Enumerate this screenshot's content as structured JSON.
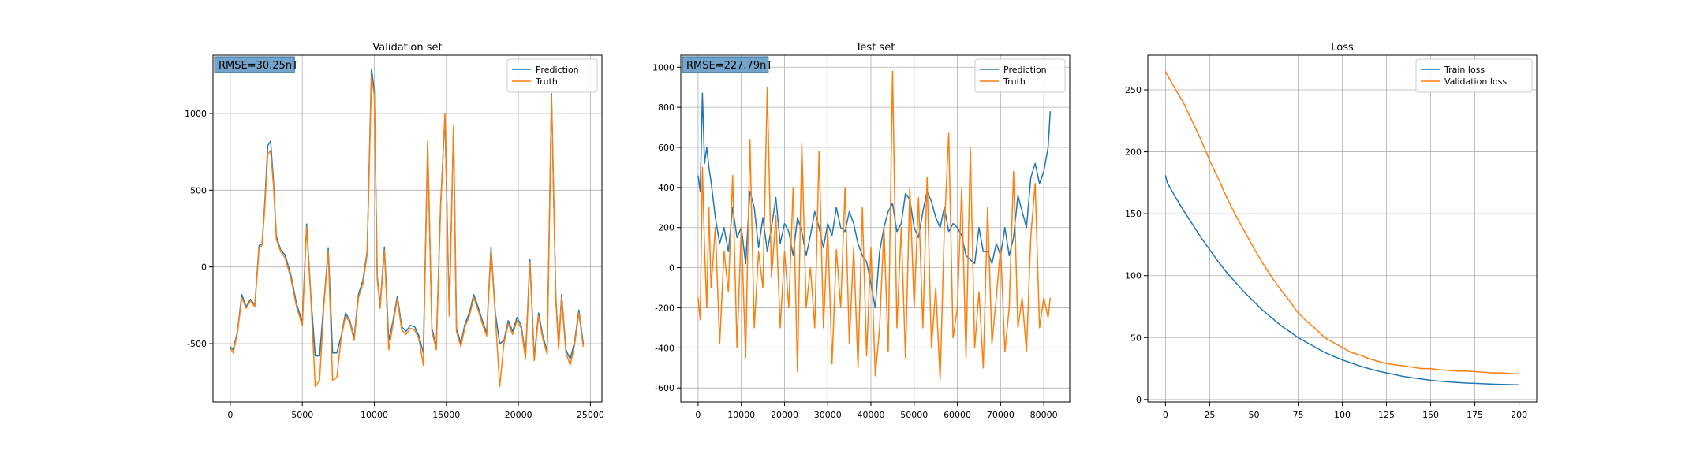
{
  "chart_data": [
    {
      "type": "line",
      "title": "Validation set",
      "xlabel": "",
      "ylabel": "",
      "xlim": [
        -1200,
        25800
      ],
      "ylim": [
        -880,
        1380
      ],
      "xticks": [
        0,
        5000,
        10000,
        15000,
        20000,
        25000
      ],
      "yticks": [
        -500,
        0,
        500,
        1000
      ],
      "grid": true,
      "legend_position": "upper right",
      "annotation": "RMSE=30.25nT",
      "series": [
        {
          "name": "Prediction",
          "color": "#1f77b4",
          "x": [
            0,
            200,
            500,
            800,
            1100,
            1400,
            1700,
            2000,
            2200,
            2400,
            2600,
            2800,
            3000,
            3200,
            3500,
            3800,
            4200,
            4600,
            5000,
            5300,
            5600,
            5900,
            6200,
            6500,
            6800,
            7100,
            7400,
            7700,
            8000,
            8300,
            8600,
            8900,
            9200,
            9500,
            9800,
            10000,
            10200,
            10400,
            10700,
            11000,
            11300,
            11600,
            11900,
            12200,
            12500,
            12800,
            13100,
            13400,
            13700,
            14000,
            14300,
            14600,
            14900,
            15200,
            15500,
            15700,
            16000,
            16300,
            16600,
            16900,
            17200,
            17500,
            17800,
            18100,
            18400,
            18700,
            19000,
            19300,
            19600,
            19900,
            20200,
            20500,
            20800,
            21100,
            21400,
            21700,
            22000,
            22300,
            22600,
            22800,
            23000,
            23300,
            23600,
            23900,
            24200,
            24500
          ],
          "values": [
            -520,
            -540,
            -420,
            -180,
            -260,
            -210,
            -250,
            140,
            150,
            420,
            790,
            820,
            560,
            200,
            110,
            80,
            -50,
            -240,
            -360,
            280,
            -200,
            -580,
            -580,
            -230,
            120,
            -560,
            -560,
            -450,
            -300,
            -350,
            -460,
            -180,
            -90,
            100,
            1290,
            1150,
            -60,
            -250,
            130,
            -480,
            -350,
            -190,
            -390,
            -420,
            -380,
            -390,
            -450,
            -560,
            800,
            -400,
            -520,
            400,
            980,
            -300,
            900,
            -400,
            -500,
            -370,
            -300,
            -180,
            -260,
            -350,
            -430,
            130,
            -300,
            -500,
            -480,
            -350,
            -420,
            -330,
            -380,
            -580,
            50,
            -590,
            -300,
            -450,
            -550,
            1130,
            -200,
            -520,
            -180,
            -540,
            -600,
            -490,
            -280,
            -500
          ]
        },
        {
          "name": "Truth",
          "color": "#ff7f0e",
          "x": [
            0,
            200,
            500,
            800,
            1100,
            1400,
            1700,
            2000,
            2200,
            2400,
            2600,
            2800,
            3000,
            3200,
            3500,
            3800,
            4200,
            4600,
            5000,
            5300,
            5600,
            5900,
            6200,
            6500,
            6800,
            7100,
            7400,
            7700,
            8000,
            8300,
            8600,
            8900,
            9200,
            9500,
            9800,
            10000,
            10200,
            10400,
            10700,
            11000,
            11300,
            11600,
            11900,
            12200,
            12500,
            12800,
            13100,
            13400,
            13700,
            14000,
            14300,
            14600,
            14900,
            15200,
            15500,
            15700,
            16000,
            16300,
            16600,
            16900,
            17200,
            17500,
            17800,
            18100,
            18400,
            18700,
            19000,
            19300,
            19600,
            19900,
            20200,
            20500,
            20800,
            21100,
            21400,
            21700,
            22000,
            22300,
            22600,
            22800,
            23000,
            23300,
            23600,
            23900,
            24200,
            24500
          ],
          "values": [
            -530,
            -560,
            -430,
            -200,
            -270,
            -220,
            -260,
            120,
            140,
            390,
            730,
            760,
            530,
            180,
            100,
            60,
            -70,
            -260,
            -380,
            260,
            -220,
            -780,
            -740,
            -250,
            100,
            -740,
            -720,
            -460,
            -320,
            -360,
            -480,
            -200,
            -110,
            80,
            1240,
            1120,
            -80,
            -270,
            110,
            -540,
            -370,
            -210,
            -410,
            -440,
            -400,
            -410,
            -470,
            -640,
            820,
            -420,
            -540,
            380,
            1000,
            -320,
            920,
            -420,
            -520,
            -390,
            -320,
            -200,
            -280,
            -370,
            -450,
            110,
            -320,
            -780,
            -500,
            -370,
            -440,
            -350,
            -400,
            -600,
            30,
            -610,
            -320,
            -470,
            -570,
            1120,
            -220,
            -540,
            -200,
            -560,
            -640,
            -510,
            -300,
            -520
          ]
        }
      ]
    },
    {
      "type": "line",
      "title": "Test set",
      "xlabel": "",
      "ylabel": "",
      "xlim": [
        -4000,
        86000
      ],
      "ylim": [
        -670,
        1060
      ],
      "xticks": [
        0,
        10000,
        20000,
        30000,
        40000,
        50000,
        60000,
        70000,
        80000
      ],
      "yticks": [
        -600,
        -400,
        -200,
        0,
        200,
        400,
        600,
        800,
        1000
      ],
      "grid": true,
      "legend_position": "upper right",
      "annotation": "RMSE=227.79nT",
      "series": [
        {
          "name": "Prediction",
          "color": "#1f77b4",
          "x": [
            0,
            500,
            1000,
            1500,
            2000,
            2500,
            3000,
            4000,
            5000,
            6000,
            7000,
            8000,
            9000,
            10000,
            11000,
            12000,
            13000,
            14000,
            15000,
            16000,
            17000,
            18000,
            19000,
            20000,
            21000,
            22000,
            23000,
            24000,
            25000,
            26000,
            27000,
            28000,
            29000,
            30000,
            31000,
            32000,
            33000,
            34000,
            35000,
            36000,
            37000,
            38000,
            39000,
            40000,
            41000,
            42000,
            43000,
            44000,
            45000,
            46000,
            47000,
            48000,
            49000,
            50000,
            51000,
            52000,
            53000,
            54000,
            55000,
            56000,
            57000,
            58000,
            59000,
            60000,
            61000,
            62000,
            63000,
            64000,
            65000,
            66000,
            67000,
            68000,
            69000,
            70000,
            71000,
            72000,
            73000,
            74000,
            75000,
            76000,
            77000,
            78000,
            79000,
            80000,
            81000,
            81500
          ],
          "values": [
            460,
            380,
            870,
            520,
            600,
            500,
            430,
            250,
            120,
            200,
            80,
            300,
            150,
            200,
            20,
            380,
            300,
            100,
            250,
            80,
            200,
            350,
            120,
            220,
            180,
            60,
            250,
            180,
            60,
            160,
            280,
            200,
            100,
            220,
            160,
            300,
            200,
            180,
            280,
            220,
            120,
            60,
            30,
            -80,
            -200,
            80,
            200,
            280,
            320,
            180,
            220,
            370,
            340,
            200,
            150,
            280,
            380,
            330,
            250,
            200,
            300,
            180,
            220,
            200,
            160,
            60,
            40,
            20,
            200,
            80,
            80,
            20,
            120,
            60,
            200,
            60,
            150,
            360,
            280,
            200,
            450,
            520,
            420,
            480,
            600,
            780
          ]
        },
        {
          "name": "Truth",
          "color": "#ff7f0e",
          "x": [
            0,
            500,
            1000,
            1500,
            2000,
            2500,
            3000,
            4000,
            5000,
            6000,
            7000,
            8000,
            9000,
            10000,
            11000,
            12000,
            13000,
            14000,
            15000,
            16000,
            17000,
            18000,
            19000,
            20000,
            21000,
            22000,
            23000,
            24000,
            25000,
            26000,
            27000,
            28000,
            29000,
            30000,
            31000,
            32000,
            33000,
            34000,
            35000,
            36000,
            37000,
            38000,
            39000,
            40000,
            41000,
            42000,
            43000,
            44000,
            45000,
            46000,
            47000,
            48000,
            49000,
            50000,
            51000,
            52000,
            53000,
            54000,
            55000,
            56000,
            57000,
            58000,
            59000,
            60000,
            61000,
            62000,
            63000,
            64000,
            65000,
            66000,
            67000,
            68000,
            69000,
            70000,
            71000,
            72000,
            73000,
            74000,
            75000,
            76000,
            77000,
            78000,
            79000,
            80000,
            81000,
            81500
          ],
          "values": [
            -150,
            -260,
            500,
            100,
            -200,
            300,
            -100,
            200,
            -380,
            80,
            -120,
            460,
            -400,
            200,
            -450,
            640,
            -300,
            80,
            -100,
            900,
            -50,
            260,
            -300,
            80,
            -200,
            400,
            -520,
            620,
            -200,
            0,
            -300,
            580,
            -300,
            200,
            -480,
            90,
            -200,
            400,
            -380,
            100,
            -500,
            300,
            -440,
            100,
            -540,
            -300,
            200,
            -420,
            980,
            -300,
            200,
            -450,
            400,
            -200,
            350,
            -300,
            450,
            -400,
            -100,
            -560,
            200,
            670,
            -350,
            -200,
            400,
            -450,
            600,
            -400,
            -120,
            -500,
            300,
            -380,
            -150,
            100,
            -420,
            -200,
            480,
            -300,
            -150,
            -420,
            160,
            420,
            -300,
            -150,
            -250,
            -150
          ]
        }
      ]
    },
    {
      "type": "line",
      "title": "Loss",
      "xlabel": "",
      "ylabel": "",
      "xlim": [
        -10,
        210
      ],
      "ylim": [
        -2,
        278
      ],
      "xticks": [
        0,
        25,
        50,
        75,
        100,
        125,
        150,
        175,
        200
      ],
      "yticks": [
        0,
        50,
        100,
        150,
        200,
        250
      ],
      "grid": true,
      "legend_position": "upper right",
      "series": [
        {
          "name": "Train loss",
          "color": "#1f77b4",
          "x": [
            0,
            1,
            5,
            10,
            15,
            20,
            25,
            30,
            35,
            40,
            45,
            50,
            55,
            60,
            65,
            70,
            75,
            80,
            85,
            90,
            95,
            100,
            105,
            110,
            115,
            120,
            125,
            130,
            135,
            140,
            145,
            150,
            155,
            160,
            165,
            170,
            175,
            180,
            185,
            190,
            195,
            200
          ],
          "values": [
            181,
            175,
            165,
            153,
            142,
            131,
            121,
            111,
            102,
            94,
            86,
            79,
            72,
            66,
            60,
            55,
            50,
            46,
            42,
            38,
            35,
            32,
            29.5,
            27,
            25,
            23,
            21.5,
            20,
            18.5,
            17.5,
            16.5,
            15.5,
            14.8,
            14.2,
            13.7,
            13.3,
            13,
            12.7,
            12.4,
            12.2,
            12,
            11.8
          ]
        },
        {
          "name": "Validation loss",
          "color": "#ff7f0e",
          "x": [
            0,
            1,
            5,
            10,
            15,
            20,
            25,
            30,
            35,
            40,
            45,
            50,
            55,
            60,
            65,
            70,
            75,
            80,
            85,
            90,
            95,
            100,
            105,
            110,
            115,
            120,
            125,
            130,
            135,
            140,
            145,
            150,
            155,
            160,
            165,
            170,
            175,
            180,
            185,
            190,
            195,
            200
          ],
          "values": [
            265,
            262,
            252,
            240,
            225,
            210,
            193,
            178,
            162,
            148,
            135,
            122,
            110,
            99,
            89,
            80,
            70,
            63,
            57,
            50,
            46,
            42,
            38,
            36,
            33,
            31,
            29,
            28,
            27,
            26,
            25,
            25,
            24,
            23.5,
            23,
            23,
            22.5,
            22,
            21.5,
            21.5,
            21,
            20.5
          ]
        }
      ]
    }
  ]
}
